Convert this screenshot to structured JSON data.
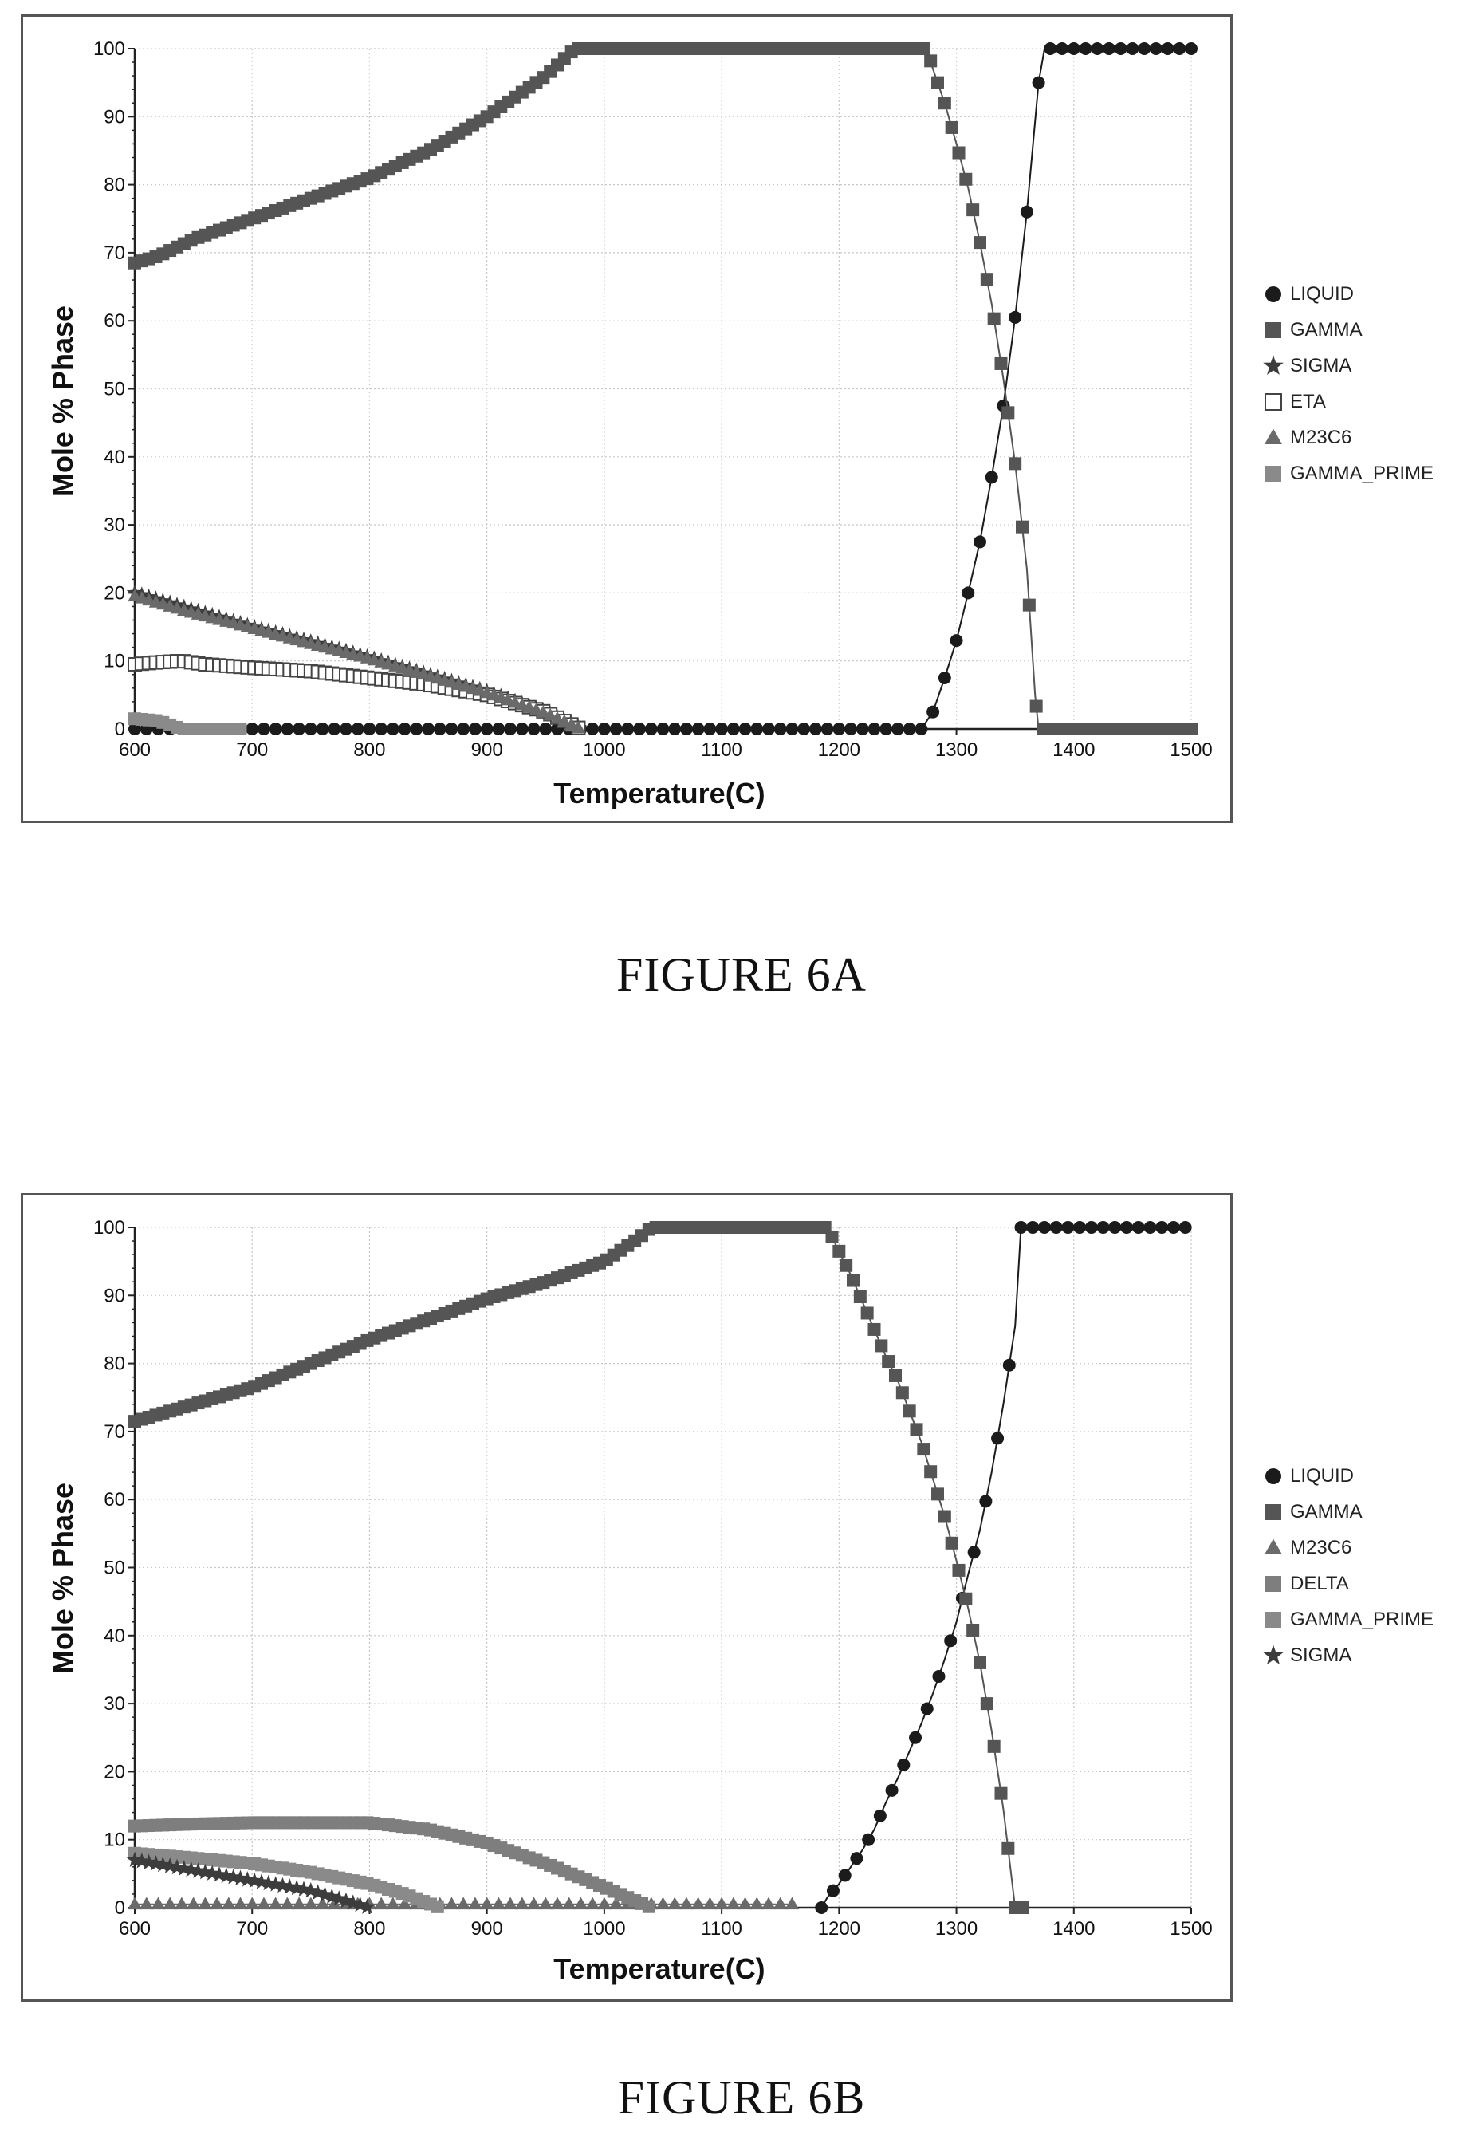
{
  "colors": {
    "LIQUID": "#1b1b1b",
    "GAMMA": "#555555",
    "SIGMA": "#3c3c3c",
    "ETA": "#444444",
    "M23C6": "#6a6a6a",
    "GAMMA_PRIME": "#8a8a8a",
    "DELTA": "#7e7e7e",
    "grid": "#c8c8c8",
    "axis": "#222222"
  },
  "figures": [
    {
      "caption": "FIGURE 6A",
      "legend": [
        {
          "label": "LIQUID",
          "marker": "circle",
          "color": "LIQUID"
        },
        {
          "label": "GAMMA",
          "marker": "square",
          "color": "GAMMA"
        },
        {
          "label": "SIGMA",
          "marker": "star",
          "color": "SIGMA"
        },
        {
          "label": "ETA",
          "marker": "open-square",
          "color": "ETA"
        },
        {
          "label": "M23C6",
          "marker": "triangle",
          "color": "M23C6"
        },
        {
          "label": "GAMMA_PRIME",
          "marker": "square",
          "color": "GAMMA_PRIME"
        }
      ]
    },
    {
      "caption": "FIGURE 6B",
      "legend": [
        {
          "label": "LIQUID",
          "marker": "circle",
          "color": "LIQUID"
        },
        {
          "label": "GAMMA",
          "marker": "square",
          "color": "GAMMA"
        },
        {
          "label": "M23C6",
          "marker": "triangle",
          "color": "M23C6"
        },
        {
          "label": "DELTA",
          "marker": "square",
          "color": "DELTA"
        },
        {
          "label": "GAMMA_PRIME",
          "marker": "square",
          "color": "GAMMA_PRIME"
        },
        {
          "label": "SIGMA",
          "marker": "star",
          "color": "SIGMA"
        }
      ]
    }
  ],
  "chart_data": [
    {
      "type": "scatter",
      "title": "",
      "xlabel": "Temperature(C)",
      "ylabel": "Mole % Phase",
      "xlim": [
        600,
        1500
      ],
      "ylim": [
        0,
        100
      ],
      "xticks": [
        600,
        700,
        800,
        900,
        1000,
        1100,
        1200,
        1300,
        1400,
        1500
      ],
      "yticks": [
        0,
        10,
        20,
        30,
        40,
        50,
        60,
        70,
        80,
        90,
        100
      ],
      "grid": true,
      "legend_position": "right",
      "series": [
        {
          "name": "LIQUID",
          "marker": "circle",
          "step": 10,
          "points": [
            [
              600,
              0
            ],
            [
              1270,
              0
            ],
            [
              1280,
              2.5
            ],
            [
              1290,
              7.5
            ],
            [
              1300,
              13
            ],
            [
              1310,
              20
            ],
            [
              1320,
              27.5
            ],
            [
              1330,
              37
            ],
            [
              1340,
              47.5
            ],
            [
              1350,
              60.5
            ],
            [
              1360,
              76
            ],
            [
              1370,
              95
            ],
            [
              1375,
              100
            ],
            [
              1500,
              100
            ]
          ]
        },
        {
          "name": "GAMMA",
          "marker": "square",
          "step": 6,
          "points": [
            [
              600,
              68.5
            ],
            [
              620,
              69.5
            ],
            [
              650,
              72
            ],
            [
              700,
              75
            ],
            [
              750,
              78
            ],
            [
              800,
              81
            ],
            [
              850,
              85
            ],
            [
              900,
              90
            ],
            [
              950,
              96
            ],
            [
              975,
              100
            ],
            [
              1275,
              100
            ],
            [
              1280,
              97
            ],
            [
              1290,
              92
            ],
            [
              1300,
              86
            ],
            [
              1310,
              79.5
            ],
            [
              1320,
              71.5
            ],
            [
              1330,
              62.5
            ],
            [
              1340,
              51.5
            ],
            [
              1350,
              39
            ],
            [
              1360,
              23.5
            ],
            [
              1367,
              5
            ],
            [
              1370,
              0
            ],
            [
              1500,
              0
            ]
          ]
        },
        {
          "name": "SIGMA",
          "marker": "star",
          "step": 6,
          "points": [
            [
              600,
              20
            ],
            [
              650,
              17.5
            ],
            [
              700,
              15
            ],
            [
              750,
              12.8
            ],
            [
              800,
              10.5
            ],
            [
              850,
              8
            ],
            [
              900,
              5.5
            ],
            [
              950,
              2.5
            ],
            [
              980,
              0
            ]
          ]
        },
        {
          "name": "ETA",
          "marker": "open-square",
          "step": 6,
          "points": [
            [
              600,
              9.5
            ],
            [
              620,
              9.8
            ],
            [
              640,
              10
            ],
            [
              660,
              9.5
            ],
            [
              700,
              9
            ],
            [
              750,
              8.5
            ],
            [
              800,
              7.5
            ],
            [
              850,
              6.5
            ],
            [
              900,
              5
            ],
            [
              950,
              2.5
            ],
            [
              980,
              0
            ]
          ]
        },
        {
          "name": "M23C6",
          "marker": "triangle",
          "step": 6,
          "points": [
            [
              600,
              19.5
            ],
            [
              650,
              17
            ],
            [
              700,
              14.8
            ],
            [
              750,
              12.5
            ],
            [
              800,
              10.3
            ],
            [
              850,
              7.8
            ],
            [
              900,
              5.3
            ],
            [
              950,
              2.3
            ],
            [
              980,
              0
            ]
          ]
        },
        {
          "name": "GAMMA_PRIME",
          "marker": "square",
          "step": 6,
          "points": [
            [
              600,
              1.5
            ],
            [
              620,
              1.2
            ],
            [
              640,
              0
            ],
            [
              690,
              0
            ]
          ]
        }
      ]
    },
    {
      "type": "scatter",
      "title": "",
      "xlabel": "Temperature(C)",
      "ylabel": "Mole % Phase",
      "xlim": [
        600,
        1500
      ],
      "ylim": [
        0,
        100
      ],
      "xticks": [
        600,
        700,
        800,
        900,
        1000,
        1100,
        1200,
        1300,
        1400,
        1500
      ],
      "yticks": [
        0,
        10,
        20,
        30,
        40,
        50,
        60,
        70,
        80,
        90,
        100
      ],
      "grid": true,
      "legend_position": "right",
      "series": [
        {
          "name": "LIQUID",
          "marker": "circle",
          "step": 10,
          "points": [
            [
              1185,
              0
            ],
            [
              1190,
              1.5
            ],
            [
              1200,
              3.5
            ],
            [
              1210,
              6
            ],
            [
              1220,
              8.5
            ],
            [
              1230,
              11.5
            ],
            [
              1240,
              15.5
            ],
            [
              1250,
              19
            ],
            [
              1260,
              23
            ],
            [
              1270,
              27
            ],
            [
              1280,
              31.5
            ],
            [
              1290,
              36.5
            ],
            [
              1300,
              42
            ],
            [
              1310,
              49
            ],
            [
              1320,
              55.5
            ],
            [
              1330,
              64
            ],
            [
              1340,
              74
            ],
            [
              1350,
              85.5
            ],
            [
              1355,
              100
            ],
            [
              1500,
              100
            ]
          ]
        },
        {
          "name": "GAMMA",
          "marker": "square",
          "step": 6,
          "points": [
            [
              600,
              71.5
            ],
            [
              650,
              74
            ],
            [
              700,
              76.5
            ],
            [
              750,
              80
            ],
            [
              800,
              83.5
            ],
            [
              850,
              86.5
            ],
            [
              900,
              89.5
            ],
            [
              950,
              92
            ],
            [
              1000,
              95
            ],
            [
              1030,
              98.5
            ],
            [
              1040,
              100
            ],
            [
              1190,
              100
            ],
            [
              1200,
              96.5
            ],
            [
              1210,
              93
            ],
            [
              1220,
              89
            ],
            [
              1230,
              85
            ],
            [
              1240,
              81
            ],
            [
              1250,
              77.5
            ],
            [
              1260,
              73
            ],
            [
              1270,
              68.5
            ],
            [
              1280,
              63
            ],
            [
              1290,
              57.5
            ],
            [
              1300,
              51
            ],
            [
              1310,
              44
            ],
            [
              1320,
              36
            ],
            [
              1330,
              26
            ],
            [
              1340,
              14.5
            ],
            [
              1350,
              0
            ],
            [
              1360,
              0
            ]
          ]
        },
        {
          "name": "M23C6",
          "marker": "triangle",
          "step": 10,
          "points": [
            [
              600,
              0.5
            ],
            [
              1160,
              0.5
            ]
          ]
        },
        {
          "name": "DELTA",
          "marker": "square",
          "step": 6,
          "points": [
            [
              600,
              12
            ],
            [
              650,
              12.3
            ],
            [
              700,
              12.5
            ],
            [
              750,
              12.5
            ],
            [
              800,
              12.5
            ],
            [
              850,
              11.5
            ],
            [
              900,
              9.5
            ],
            [
              950,
              6.5
            ],
            [
              1000,
              3
            ],
            [
              1040,
              0
            ]
          ]
        },
        {
          "name": "GAMMA_PRIME",
          "marker": "square",
          "step": 6,
          "points": [
            [
              600,
              8
            ],
            [
              650,
              7.3
            ],
            [
              700,
              6.5
            ],
            [
              750,
              5.2
            ],
            [
              800,
              3.5
            ],
            [
              830,
              2
            ],
            [
              860,
              0
            ]
          ]
        },
        {
          "name": "SIGMA",
          "marker": "star",
          "step": 6,
          "points": [
            [
              600,
              7
            ],
            [
              650,
              5.5
            ],
            [
              700,
              4
            ],
            [
              750,
              2.5
            ],
            [
              800,
              0
            ]
          ]
        }
      ]
    }
  ]
}
